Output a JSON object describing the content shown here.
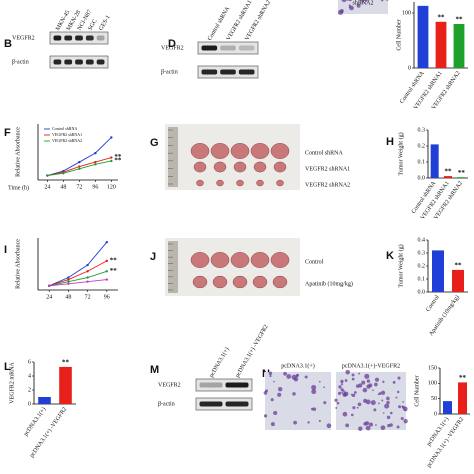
{
  "panels": [
    {
      "label": "B",
      "type": "blot",
      "lanes": [
        "MKN-45",
        "MKN-28",
        "NCI-N87",
        "SGC",
        "GES-1"
      ],
      "rows": [
        "VEGFR2",
        "β-actin"
      ]
    },
    {
      "label": "D",
      "type": "blot",
      "lanes": [
        "Control shRNA",
        "VEGFR2 shRNA1",
        "VEGFR2 shRNA2"
      ],
      "rows": [
        "VEGFR2",
        "β-actin"
      ]
    },
    {
      "type": "micrographs",
      "captions": [
        "shRNA2"
      ]
    },
    {
      "type": "bar",
      "y_label": "Cell Number",
      "categories": [
        "Control shRNA",
        "VEGFR2 shRNA1",
        "VEGFR2 shRNA2"
      ],
      "values": [
        113,
        84,
        80
      ],
      "colors": [
        "#1f3fd6",
        "#e8201a",
        "#1fa02a"
      ],
      "significance": [
        null,
        "**",
        "**"
      ],
      "ylim": [
        0,
        120
      ],
      "yticks": [
        0,
        100
      ]
    },
    {
      "label": "F",
      "type": "line",
      "y_label": "Relative Absorbance",
      "x_label": "Time (h)",
      "x": [
        24,
        48,
        72,
        96,
        120
      ],
      "xlim": [
        10,
        130
      ],
      "xticks": [
        24,
        48,
        72,
        96,
        120
      ],
      "ylim": [
        0,
        2.5
      ],
      "series": [
        {
          "name": "Control shRNA",
          "color": "#1f3fd6",
          "values": [
            0.2,
            0.4,
            0.8,
            1.2,
            1.9
          ]
        },
        {
          "name": "VEGFR2 shRNA1",
          "color": "#e8201a",
          "values": [
            0.2,
            0.35,
            0.6,
            0.8,
            1.0
          ],
          "significance": "**"
        },
        {
          "name": "VEGFR2 shRNA2",
          "color": "#1fa02a",
          "values": [
            0.2,
            0.3,
            0.5,
            0.7,
            0.85
          ],
          "significance": "**"
        }
      ]
    },
    {
      "label": "G",
      "type": "photo",
      "rows": [
        "Control shRNA",
        "VEGFR2 shRNA1",
        "VEGFR2 shRNA2"
      ]
    },
    {
      "label": "H",
      "type": "bar",
      "y_label": "Tumor Weight (g)",
      "categories": [
        "Control shRNA",
        "VEGFR2 shRNA1",
        "VEGFR2 shRNA2"
      ],
      "values": [
        0.21,
        0.012,
        0.005
      ],
      "colors": [
        "#1f3fd6",
        "#e8201a",
        "#1fa02a"
      ],
      "significance": [
        null,
        "**",
        "**"
      ],
      "ylim": [
        0,
        0.3
      ],
      "yticks": [
        {
          "value": 0,
          "label": "0.0"
        },
        0.1,
        0.2,
        0.3
      ]
    },
    {
      "label": "I",
      "type": "line",
      "y_label": "Relative Absorbance",
      "x": [
        24,
        48,
        72,
        96
      ],
      "xlim": [
        10,
        110
      ],
      "xticks": [
        24,
        48,
        72,
        96
      ],
      "ylim": [
        0,
        2.5
      ],
      "series": [
        {
          "color": "#1f3fd6",
          "values": [
            0.2,
            0.6,
            1.2,
            2.3
          ]
        },
        {
          "color": "#e8201a",
          "values": [
            0.2,
            0.5,
            0.9,
            1.4
          ],
          "significance": "**"
        },
        {
          "color": "#1fa02a",
          "values": [
            0.2,
            0.4,
            0.6,
            0.9
          ],
          "significance": "**"
        },
        {
          "color": "#c03cc8",
          "values": [
            0.2,
            0.3,
            0.4,
            0.5
          ]
        }
      ]
    },
    {
      "label": "J",
      "type": "photo",
      "rows": [
        "Control",
        "Apatinib (10mg/kg)"
      ]
    },
    {
      "label": "K",
      "type": "bar",
      "y_label": "Tumor Weight (g)",
      "categories": [
        "Control",
        "Apatinib (10mg/kg)"
      ],
      "values": [
        0.32,
        0.17
      ],
      "colors": [
        "#1f3fd6",
        "#e8201a"
      ],
      "significance": [
        null,
        "**"
      ],
      "ylim": [
        0,
        0.4
      ],
      "yticks": [
        {
          "value": 0,
          "label": "0.0"
        },
        0.1,
        0.2,
        0.3,
        0.4
      ]
    },
    {
      "label": "L",
      "type": "bar",
      "y_label": "VEGFR2 mRNA",
      "categories": [
        "pcDNA3.1(+)",
        "pcDNA3.1(+) -VEGFR2"
      ],
      "values": [
        1.0,
        5.3
      ],
      "colors": [
        "#1f3fd6",
        "#e8201a"
      ],
      "significance": [
        null,
        "**"
      ],
      "ylim": [
        0,
        6
      ],
      "yticks": [
        0,
        2,
        4,
        6
      ]
    },
    {
      "label": "M",
      "type": "blot",
      "lanes": [
        "pcDNA3.1(+)",
        "pcDNA3.1(+) -VEGFR2"
      ],
      "rows": [
        "VEGFR2",
        "β-actin"
      ]
    },
    {
      "label": "N",
      "type": "micrographs",
      "captions": [
        "pcDNA3.1(+)",
        "pcDNA3.1(+)-VEGFR2"
      ]
    },
    {
      "type": "bar",
      "y_label": "Cell Number",
      "categories": [
        "pcDNA3.1(+)",
        "pcDNA3.1(+) -VEGFR2"
      ],
      "values": [
        42,
        103
      ],
      "colors": [
        "#1f3fd6",
        "#e8201a"
      ],
      "significance": [
        null,
        "**"
      ],
      "ylim": [
        0,
        150
      ],
      "yticks": [
        0,
        50,
        100,
        150
      ]
    }
  ]
}
